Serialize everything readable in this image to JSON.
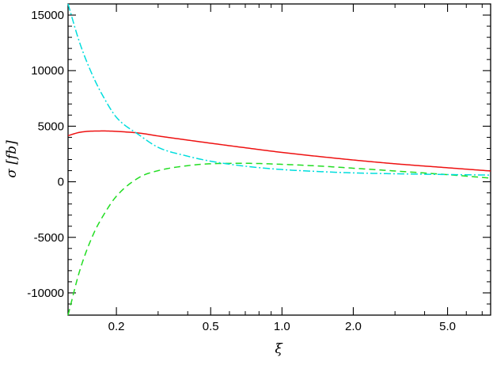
{
  "chart_data": {
    "type": "line",
    "xlabel": "ξ",
    "ylabel": "σ  [fb]",
    "xscale": "log",
    "xlim": [
      0.125,
      7.6
    ],
    "ylim": [
      -12000,
      16000
    ],
    "grid": false,
    "legend": "none",
    "x_ticks": [
      {
        "value": 0.2,
        "label": "0.2"
      },
      {
        "value": 0.5,
        "label": "0.5"
      },
      {
        "value": 1.0,
        "label": "1.0"
      },
      {
        "value": 2.0,
        "label": "2.0"
      },
      {
        "value": 5.0,
        "label": "5.0"
      }
    ],
    "y_ticks": [
      {
        "value": 15000,
        "label": "15000"
      },
      {
        "value": 10000,
        "label": "10000"
      },
      {
        "value": 5000,
        "label": "5000"
      },
      {
        "value": 0,
        "label": "0"
      },
      {
        "value": -5000,
        "label": "-5000"
      },
      {
        "value": -10000,
        "label": "-10000"
      }
    ],
    "series": [
      {
        "color": "#ee1111",
        "style": "solid",
        "points": [
          [
            0.125,
            4150
          ],
          [
            0.14,
            4450
          ],
          [
            0.16,
            4560
          ],
          [
            0.18,
            4570
          ],
          [
            0.2,
            4530
          ],
          [
            0.25,
            4380
          ],
          [
            0.3,
            4120
          ],
          [
            0.4,
            3750
          ],
          [
            0.5,
            3470
          ],
          [
            0.7,
            3060
          ],
          [
            1.0,
            2640
          ],
          [
            1.5,
            2230
          ],
          [
            2.0,
            1960
          ],
          [
            3.0,
            1620
          ],
          [
            5.0,
            1260
          ],
          [
            7.6,
            970
          ]
        ]
      },
      {
        "color": "#22dd22",
        "style": "dashed",
        "points": [
          [
            0.125,
            -12000
          ],
          [
            0.14,
            -8000
          ],
          [
            0.16,
            -4700
          ],
          [
            0.18,
            -2700
          ],
          [
            0.2,
            -1300
          ],
          [
            0.25,
            400
          ],
          [
            0.3,
            1000
          ],
          [
            0.4,
            1450
          ],
          [
            0.5,
            1620
          ],
          [
            0.7,
            1660
          ],
          [
            1.0,
            1570
          ],
          [
            1.5,
            1390
          ],
          [
            2.0,
            1220
          ],
          [
            3.0,
            970
          ],
          [
            5.0,
            640
          ],
          [
            7.6,
            330
          ]
        ]
      },
      {
        "color": "#00dddd",
        "style": "dashdot",
        "points": [
          [
            0.125,
            16000
          ],
          [
            0.14,
            12500
          ],
          [
            0.16,
            9400
          ],
          [
            0.18,
            7300
          ],
          [
            0.2,
            5800
          ],
          [
            0.25,
            4200
          ],
          [
            0.3,
            3100
          ],
          [
            0.4,
            2300
          ],
          [
            0.5,
            1850
          ],
          [
            0.7,
            1400
          ],
          [
            1.0,
            1100
          ],
          [
            1.5,
            900
          ],
          [
            2.0,
            800
          ],
          [
            3.0,
            720
          ],
          [
            5.0,
            650
          ],
          [
            7.6,
            600
          ]
        ]
      }
    ]
  }
}
